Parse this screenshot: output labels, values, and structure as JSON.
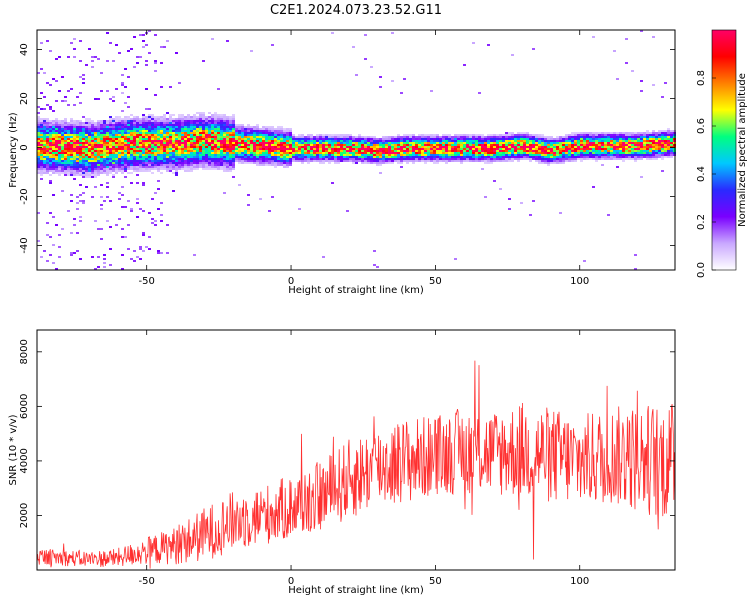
{
  "figure": {
    "title": "C2E1.2024.073.23.52.G11"
  },
  "chart_data": [
    {
      "type": "heatmap",
      "xlabel": "Height of straight line (km)",
      "ylabel": "Frequency (Hz)",
      "xlim": [
        -88,
        133
      ],
      "ylim": [
        -50,
        48
      ],
      "xticks": [
        -50,
        0,
        50,
        100
      ],
      "yticks": [
        -40,
        -20,
        0,
        20,
        40
      ],
      "colorbar": {
        "label": "Normalized spectral amplitude",
        "range": [
          0,
          1
        ],
        "ticks": [
          "0.0",
          "0.2",
          "0.4",
          "0.6",
          "0.8"
        ],
        "colormap": [
          "#ffffff",
          "#c9a8ff",
          "#7a00ff",
          "#2a2aff",
          "#00c8ff",
          "#00ff80",
          "#ffff00",
          "#ff8000",
          "#ff0000",
          "#ff0066"
        ]
      },
      "ridge": {
        "description_x": [
          -88,
          -70,
          -55,
          -40,
          -30,
          -20,
          -10,
          0,
          10,
          20,
          30,
          40,
          50,
          60,
          70,
          80,
          90,
          100,
          110,
          120,
          130
        ],
        "center_hz": [
          1,
          0,
          2,
          2,
          3,
          2,
          1,
          0,
          0,
          0,
          -1,
          0,
          0,
          0,
          0,
          1,
          -1,
          1,
          1,
          1,
          2
        ]
      },
      "grid": false
    },
    {
      "type": "line",
      "xlabel": "Height of straight line (km)",
      "ylabel": "SNR (10 * v/v)",
      "xlim": [
        -88,
        133
      ],
      "ylim": [
        0,
        8800
      ],
      "xticks": [
        -50,
        0,
        50,
        100
      ],
      "yticks": [
        2000,
        4000,
        6000,
        8000
      ],
      "color": "#ff3030",
      "envelope_x": [
        -88,
        -80,
        -70,
        -60,
        -50,
        -40,
        -30,
        -20,
        -10,
        0,
        10,
        20,
        30,
        40,
        50,
        60,
        70,
        80,
        90,
        100,
        110,
        120,
        130
      ],
      "envelope_mean": [
        500,
        450,
        400,
        450,
        700,
        900,
        1300,
        1800,
        2000,
        2300,
        2700,
        3300,
        3800,
        4000,
        4200,
        4400,
        4300,
        4400,
        4200,
        4000,
        4200,
        4100,
        4000
      ],
      "envelope_amp": [
        300,
        300,
        300,
        350,
        500,
        700,
        1000,
        1100,
        1100,
        1200,
        1300,
        1500,
        1500,
        1600,
        1500,
        1600,
        1600,
        1800,
        1800,
        1700,
        1800,
        2000,
        2200
      ],
      "grid": false
    }
  ]
}
